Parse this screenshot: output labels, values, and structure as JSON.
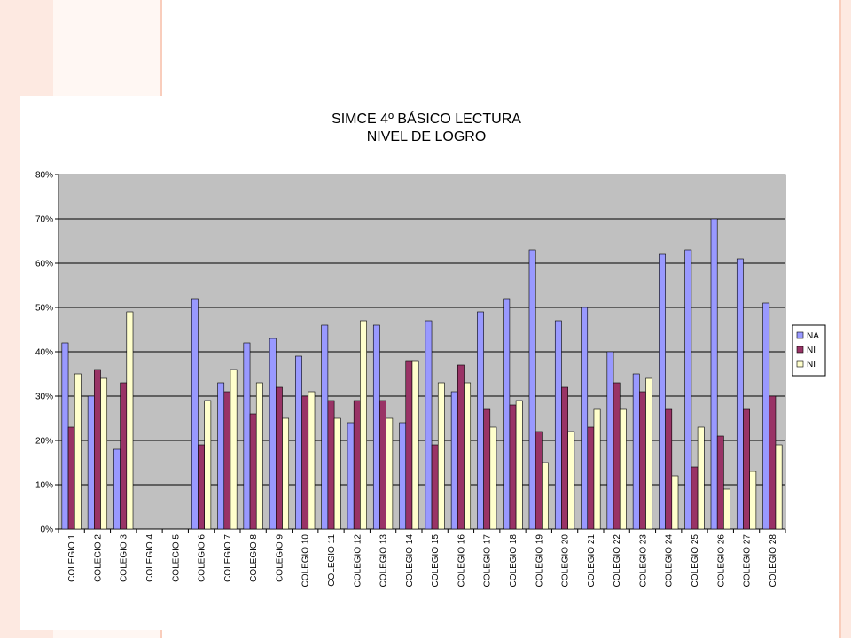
{
  "chart_data": {
    "type": "bar",
    "title": [
      "SIMCE 4º BÁSICO LECTURA",
      "NIVEL DE LOGRO"
    ],
    "xlabel": "",
    "ylabel": "",
    "ylim": [
      0,
      0.8
    ],
    "yticks": [
      "0%",
      "10%",
      "20%",
      "30%",
      "40%",
      "50%",
      "60%",
      "70%",
      "80%"
    ],
    "grid": true,
    "legend_position": "right",
    "categories": [
      "COLEGIO 1",
      "COLEGIO 2",
      "COLEGIO 3",
      "COLEGIO 4",
      "COLEGIO 5",
      "COLEGIO 6",
      "COLEGIO 7",
      "COLEGIO 8",
      "COLEGIO 9",
      "COLEGIO 10",
      "COLEGIO 11",
      "COLEGIO 12",
      "COLEGIO 13",
      "COLEGIO 14",
      "COLEGIO 15",
      "COLEGIO 16",
      "COLEGIO 17",
      "COLEGIO 18",
      "COLEGIO 19",
      "COLEGIO 20",
      "COLEGIO 21",
      "COLEGIO 22",
      "COLEGIO 23",
      "COLEGIO 24",
      "COLEGIO 25",
      "COLEGIO 26",
      "COLEGIO 27",
      "COLEGIO 28"
    ],
    "series": [
      {
        "name": "NA",
        "color": "#9999ff",
        "values": [
          0.42,
          0.3,
          0.18,
          null,
          null,
          0.52,
          0.33,
          0.42,
          0.43,
          0.39,
          0.46,
          0.24,
          0.46,
          0.24,
          0.47,
          0.31,
          0.49,
          0.52,
          0.63,
          0.47,
          0.5,
          0.4,
          0.35,
          0.62,
          0.63,
          0.7,
          0.61,
          0.51
        ]
      },
      {
        "name": "NI",
        "color": "#993366",
        "values": [
          0.23,
          0.36,
          0.33,
          null,
          null,
          0.19,
          0.31,
          0.26,
          0.32,
          0.3,
          0.29,
          0.29,
          0.29,
          0.38,
          0.19,
          0.37,
          0.27,
          0.28,
          0.22,
          0.32,
          0.23,
          0.33,
          0.31,
          0.27,
          0.14,
          0.21,
          0.27,
          0.3
        ]
      },
      {
        "name": "NI",
        "color": "#ffffcc",
        "values": [
          0.35,
          0.34,
          0.49,
          null,
          null,
          0.29,
          0.36,
          0.33,
          0.25,
          0.31,
          0.25,
          0.47,
          0.25,
          0.38,
          0.33,
          0.33,
          0.23,
          0.29,
          0.15,
          0.22,
          0.27,
          0.27,
          0.34,
          0.12,
          0.23,
          0.09,
          0.13,
          0.19
        ]
      }
    ],
    "colors": {
      "plot_background": "#c0c0c0",
      "gridline": "#000000",
      "slide_accent": "#f28b4a",
      "slide_stripe": "#fadbd0"
    }
  }
}
